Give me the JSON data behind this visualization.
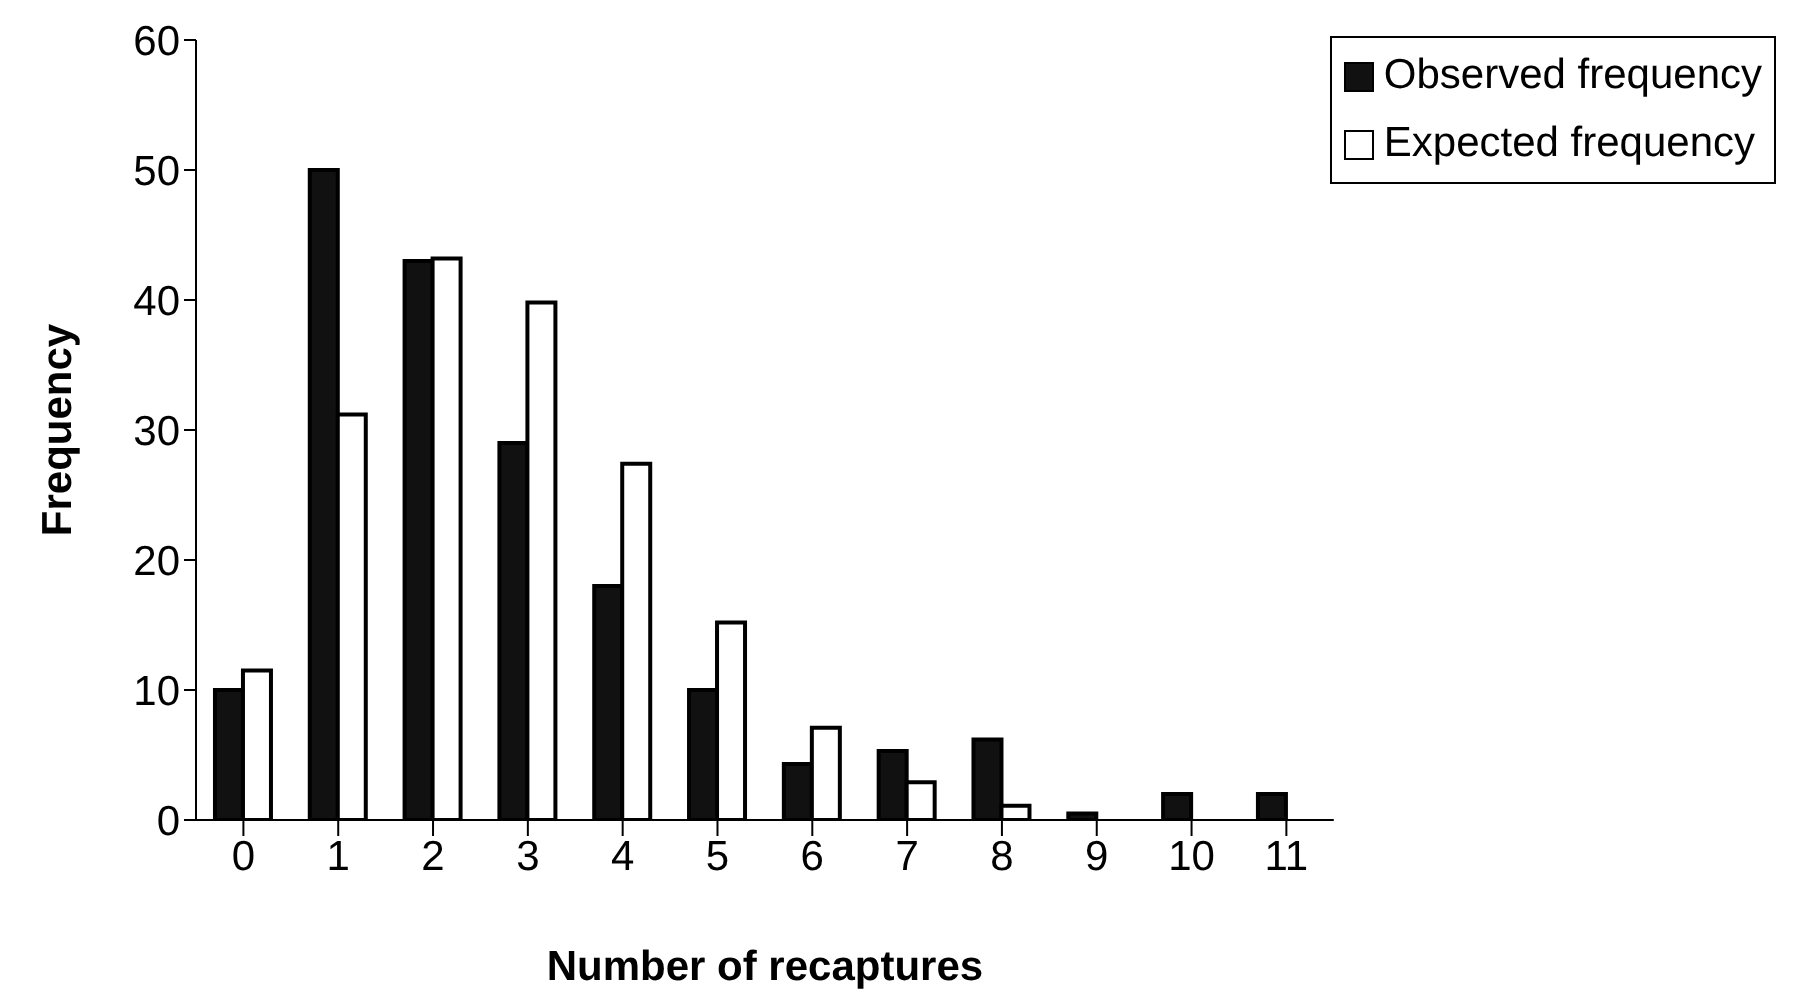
{
  "chart_data": {
    "type": "bar",
    "xlabel": "Number of recaptures",
    "ylabel": "Frequency",
    "categories": [
      "0",
      "1",
      "2",
      "3",
      "4",
      "5",
      "6",
      "7",
      "8",
      "9",
      "10",
      "11"
    ],
    "series": [
      {
        "name": "Observed frequency",
        "color": "#111111",
        "values": [
          10,
          50,
          43,
          29,
          18,
          10,
          4.3,
          5.3,
          6.2,
          0.5,
          2,
          2
        ]
      },
      {
        "name": "Expected frequency",
        "color": "#ffffff",
        "values": [
          11.5,
          31.2,
          43.2,
          39.8,
          27.4,
          15.2,
          7.1,
          2.9,
          1.1,
          null,
          null,
          null
        ]
      }
    ],
    "ylim": [
      0,
      60
    ],
    "yticks": [
      0,
      10,
      20,
      30,
      40,
      50,
      60
    ],
    "grid": false,
    "legend": "top right"
  }
}
